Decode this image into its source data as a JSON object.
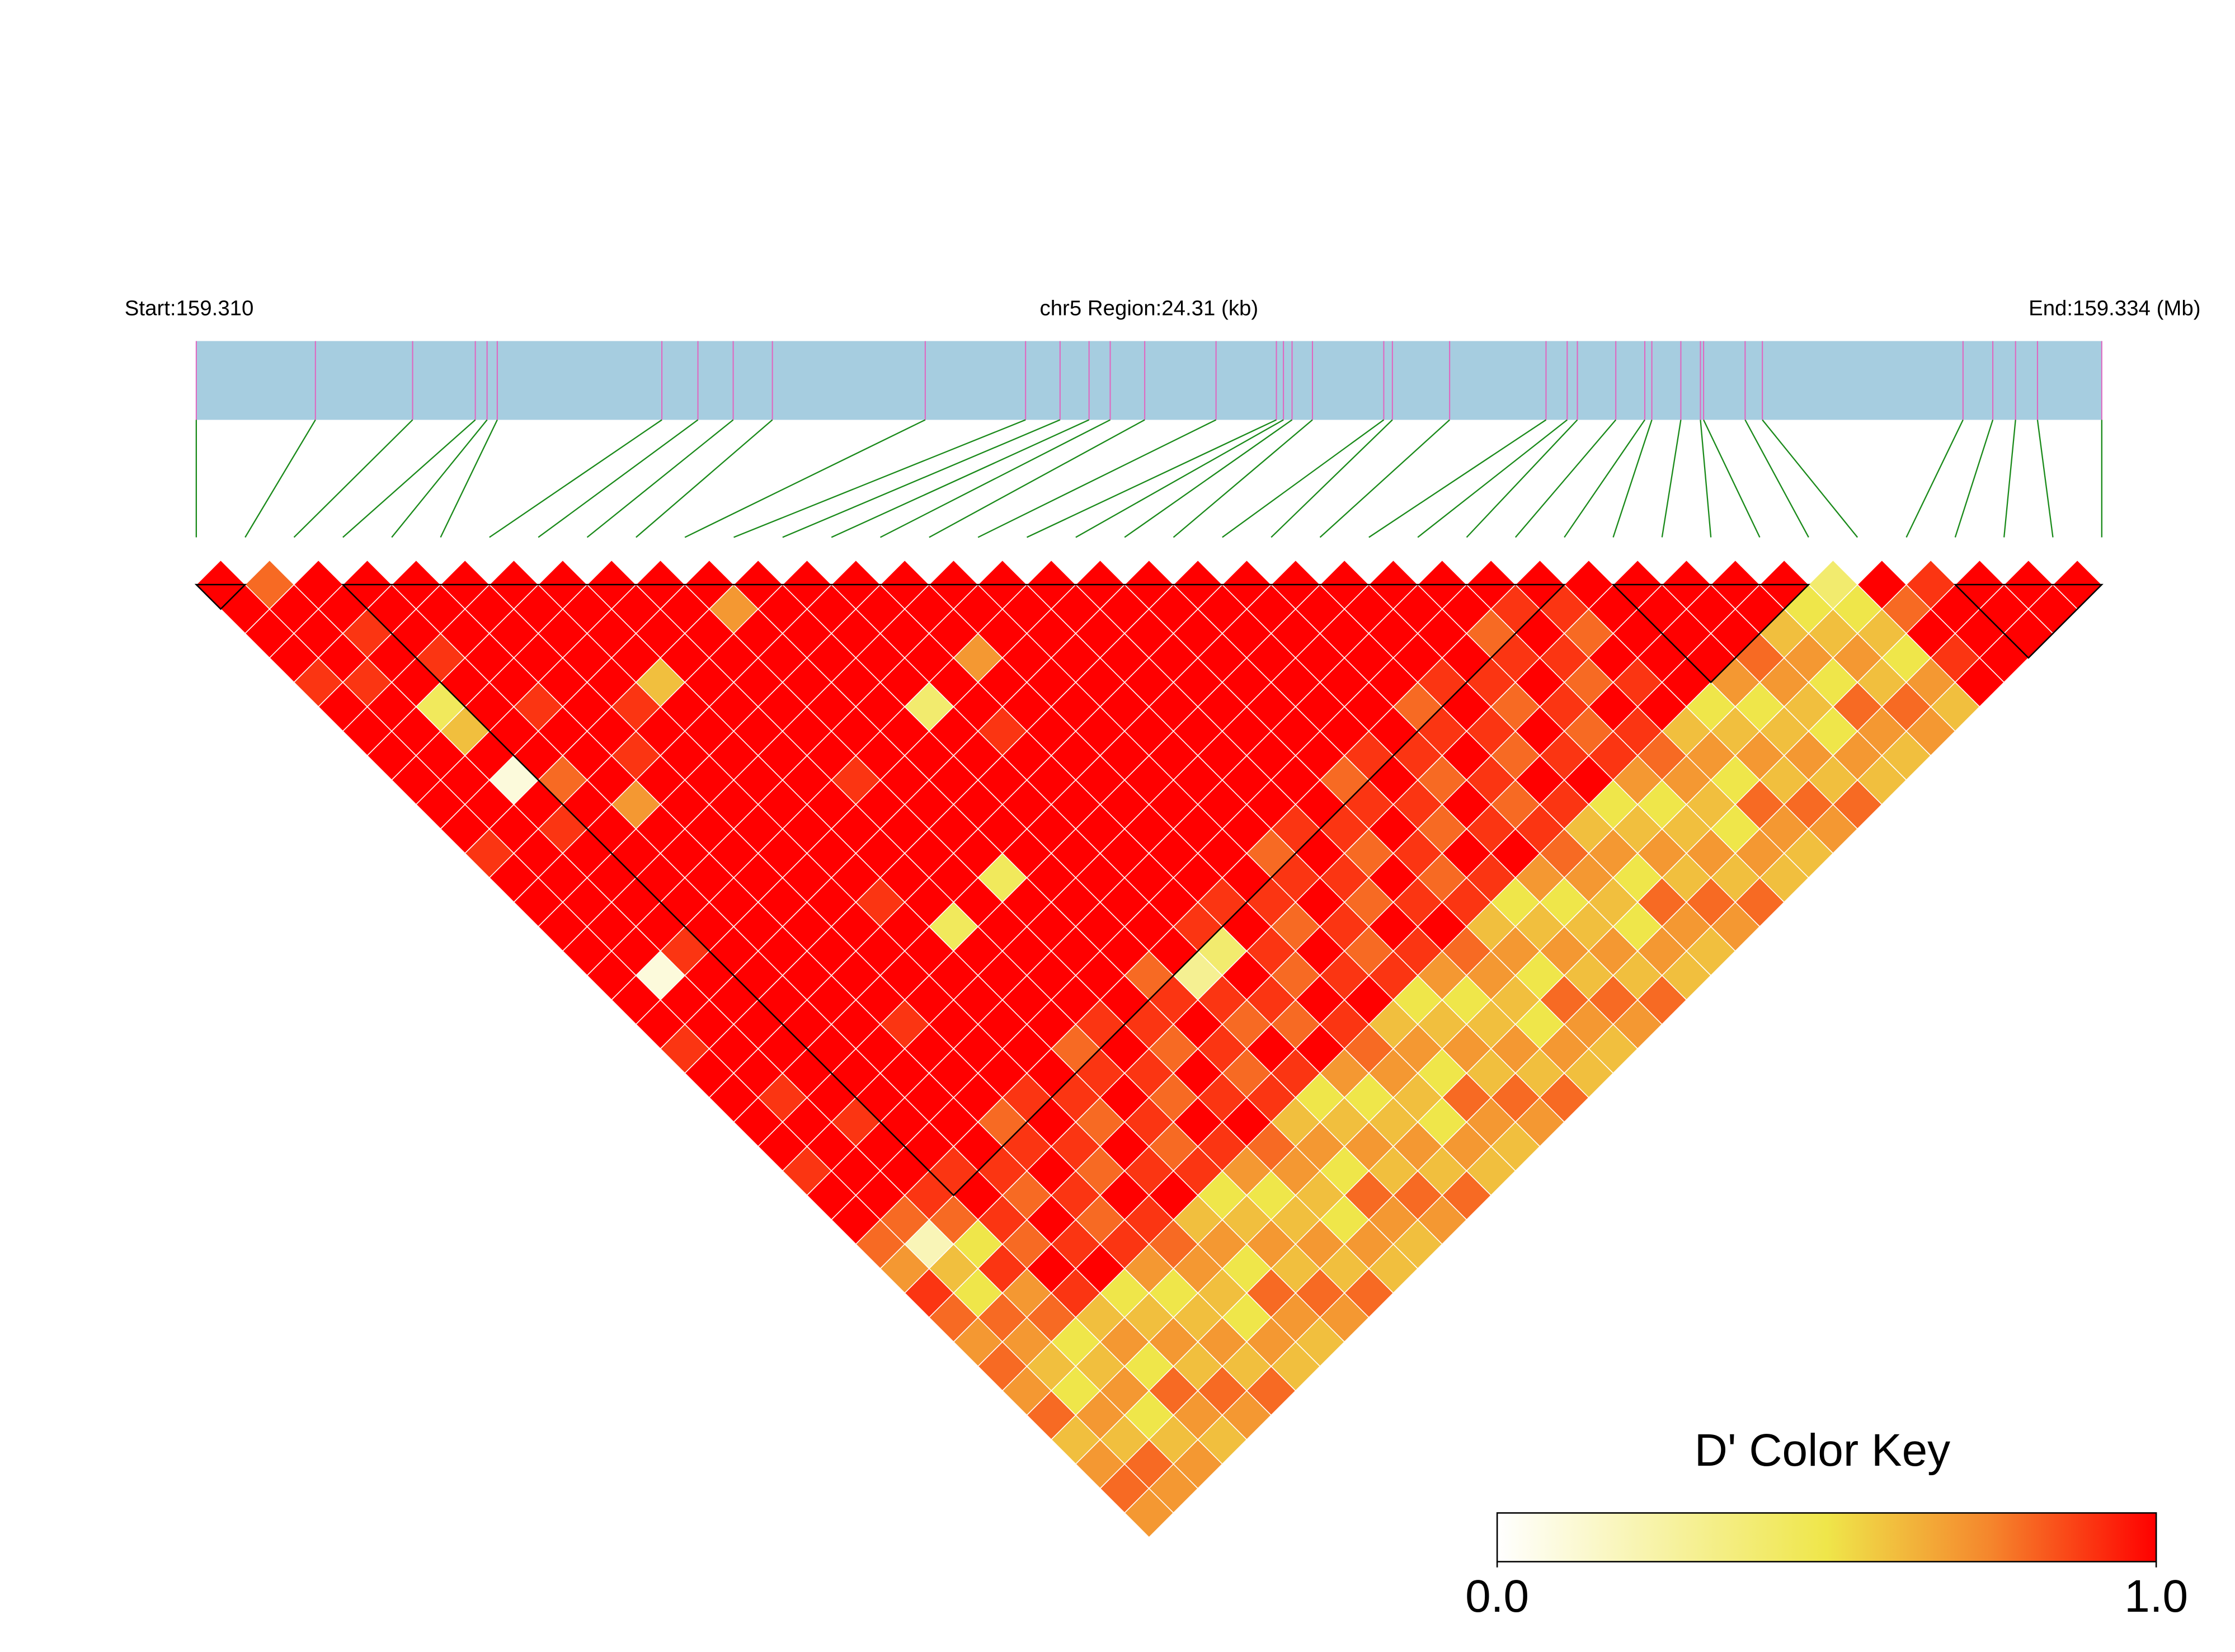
{
  "chart_data": {
    "type": "ld-heatmap",
    "start_label": "Start:159.310",
    "region_label": "chr5 Region:24.31 (kb)",
    "end_label": "End:159.334 (Mb)",
    "key_title": "D' Color Key",
    "key_ticks": [
      {
        "value": 0,
        "label": "0.0"
      },
      {
        "value": 1,
        "label": "1.0"
      }
    ],
    "color_stops": [
      {
        "value": 0,
        "color": "#ffffff"
      },
      {
        "value": 0.5,
        "color": "#efe64a"
      },
      {
        "value": 0.75,
        "color": "#f5852c"
      },
      {
        "value": 1,
        "color": "#ff0000"
      }
    ],
    "bar_color": "#a6cde0",
    "tick_color": "#e066c0",
    "connector_color": "#1a8a1a",
    "block_color": "#000000",
    "cell_border": "#ffffff",
    "xlim": [
      0,
      24.31
    ],
    "positions": [
      0,
      1.52,
      2.76,
      3.56,
      3.71,
      3.84,
      5.94,
      6.4,
      6.85,
      7.35,
      9.3,
      10.58,
      11.02,
      11.39,
      11.66,
      12.1,
      13.01,
      13.78,
      13.87,
      13.98,
      14.24,
      15.15,
      15.26,
      15.99,
      17.22,
      17.49,
      17.62,
      18.11,
      18.48,
      18.57,
      18.94,
      19.19,
      19.23,
      19.76,
      19.98,
      22.54,
      22.92,
      23.21,
      23.49,
      24.31
    ],
    "blocks": [
      [
        0,
        1
      ],
      [
        3,
        28
      ],
      [
        29,
        33
      ],
      [
        36,
        39
      ]
    ],
    "values": [
      [
        1,
        1,
        1,
        1,
        0.9,
        1,
        1,
        1,
        1,
        1,
        1,
        0.9,
        1,
        1,
        1,
        1,
        1,
        1,
        1,
        0.9,
        1,
        1,
        1,
        1,
        0.9,
        1,
        1,
        0.8,
        0.7,
        0.9,
        0.8,
        0.7,
        0.8,
        0.7,
        0.8,
        0.6,
        0.7,
        0.8,
        0.7
      ],
      [
        0.8,
        1,
        1,
        1,
        0.9,
        1,
        1,
        1,
        1,
        1,
        1,
        1,
        1,
        1,
        1,
        1,
        0.1,
        1,
        1,
        1,
        1,
        0.9,
        1,
        1,
        1,
        1,
        0.8,
        0.2,
        0.6,
        0.5,
        0.8,
        0.7,
        0.6,
        0.5,
        0.7,
        0.6,
        0.8,
        0.7
      ],
      [
        1,
        1,
        0.9,
        1,
        1,
        0.45,
        0.6,
        1,
        0.1,
        1,
        0.9,
        1,
        1,
        1,
        1,
        0.9,
        1,
        1,
        1,
        1,
        1,
        1,
        0.9,
        1,
        1,
        0.9,
        0.8,
        0.5,
        0.9,
        0.7,
        0.8,
        0.5,
        0.6,
        0.7,
        0.5,
        0.6,
        0.7
      ],
      [
        1,
        1,
        1,
        0.9,
        1,
        1,
        1,
        1,
        0.8,
        1,
        1,
        1,
        1,
        1,
        1,
        1,
        1,
        1,
        1,
        1,
        1,
        1,
        1,
        1,
        0.9,
        1,
        0.9,
        0.8,
        1,
        0.9,
        0.6,
        0.7,
        0.5,
        0.8,
        0.7,
        0.6
      ],
      [
        1,
        1,
        1,
        1,
        1,
        0.9,
        1,
        1,
        1,
        0.7,
        1,
        1,
        1,
        1,
        1,
        1,
        1,
        1,
        1,
        1,
        1,
        1,
        1,
        1,
        0.9,
        0.8,
        1,
        0.9,
        1,
        0.5,
        0.6,
        0.7,
        0.6,
        0.8,
        0.7
      ],
      [
        1,
        1,
        1,
        1,
        1,
        1,
        1,
        0.9,
        1,
        1,
        1,
        1,
        1,
        1,
        1,
        1,
        1,
        1,
        0.9,
        1,
        1,
        1,
        0.8,
        0.9,
        1,
        0.9,
        0.8,
        0.9,
        0.7,
        0.5,
        0.6,
        0.7,
        0.6,
        0.8
      ],
      [
        1,
        1,
        1,
        1,
        1,
        0.9,
        1,
        1,
        1,
        1,
        1,
        1,
        1,
        1,
        1,
        1,
        1,
        1,
        1,
        1,
        1,
        0.9,
        1,
        0.9,
        0.8,
        1,
        0.9,
        0.8,
        0.7,
        0.6,
        0.5,
        0.7,
        0.6
      ],
      [
        1,
        1,
        1,
        1,
        0.6,
        1,
        1,
        1,
        1,
        1,
        1,
        1,
        1,
        0.9,
        1,
        1,
        1,
        1,
        1,
        1,
        1,
        0.9,
        0.8,
        1,
        0.9,
        1,
        0.6,
        0.7,
        0.5,
        0.8,
        0.7,
        0.6
      ],
      [
        1,
        1,
        1,
        1,
        1,
        1,
        1,
        1,
        1,
        1,
        1,
        1,
        1,
        1,
        0.45,
        1,
        1,
        1,
        1,
        0.8,
        0.9,
        1,
        0.9,
        0.8,
        0.9,
        0.5,
        0.6,
        0.7,
        0.6,
        0.8,
        0.7
      ],
      [
        1,
        1,
        1,
        1,
        1,
        1,
        1,
        1,
        0.9,
        1,
        1,
        1,
        1,
        1,
        1,
        1,
        1,
        1,
        0.9,
        1,
        0.9,
        0.8,
        1,
        0.9,
        0.7,
        0.5,
        0.6,
        0.7,
        0.6,
        0.8
      ],
      [
        1,
        0.7,
        1,
        1,
        1,
        1,
        1,
        1,
        1,
        1,
        1,
        1,
        0.45,
        1,
        1,
        1,
        1,
        1,
        0.9,
        0.8,
        1,
        0.9,
        1,
        0.8,
        0.7,
        0.6,
        0.5,
        0.7,
        0.6
      ],
      [
        1,
        1,
        1,
        1,
        1,
        1,
        1,
        1,
        1,
        1,
        1,
        1,
        1,
        1,
        1,
        1,
        0.8,
        0.9,
        1,
        0.9,
        0.8,
        0.9,
        0.6,
        0.7,
        0.5,
        0.8,
        0.7,
        0.6
      ],
      [
        1,
        1,
        1,
        1,
        1,
        0.4,
        1,
        1,
        1,
        1,
        1,
        1,
        1,
        1,
        1,
        1,
        0.3,
        0.9,
        0.8,
        1,
        0.9,
        0.5,
        0.6,
        0.7,
        0.6,
        0.8,
        0.7
      ],
      [
        1,
        1,
        1,
        1,
        1,
        1,
        0.9,
        1,
        1,
        1,
        1,
        1,
        1,
        1,
        0.9,
        0.4,
        1,
        0.9,
        0.8,
        1,
        0.7,
        0.5,
        0.6,
        0.7,
        0.6,
        0.8
      ],
      [
        1,
        1,
        1,
        0.7,
        1,
        1,
        1,
        1,
        1,
        1,
        1,
        1,
        1,
        0.9,
        1,
        0.9,
        0.8,
        1,
        0.9,
        0.8,
        0.7,
        0.6,
        0.5,
        0.7,
        0.6
      ],
      [
        1,
        1,
        1,
        1,
        1,
        1,
        1,
        1,
        1,
        1,
        1,
        1,
        1,
        0.9,
        0.8,
        1,
        0.9,
        1,
        0.6,
        0.7,
        0.5,
        0.8,
        0.7,
        0.6
      ],
      [
        1,
        1,
        1,
        1,
        1,
        1,
        1,
        1,
        1,
        1,
        1,
        0.8,
        0.9,
        1,
        0.9,
        0.8,
        0.9,
        0.5,
        0.6,
        0.7,
        0.6,
        0.8,
        0.7
      ],
      [
        1,
        1,
        1,
        1,
        1,
        1,
        1,
        1,
        1,
        1,
        0.9,
        1,
        0.9,
        0.8,
        1,
        0.9,
        0.7,
        0.5,
        0.6,
        0.7,
        0.6,
        0.8
      ],
      [
        1,
        1,
        1,
        1,
        1,
        1,
        1,
        1,
        1,
        1,
        0.9,
        0.8,
        1,
        0.9,
        1,
        0.8,
        0.7,
        0.6,
        0.5,
        0.7,
        0.6
      ],
      [
        1,
        1,
        1,
        1,
        1,
        1,
        1,
        1,
        0.8,
        0.9,
        1,
        0.9,
        0.8,
        0.9,
        0.6,
        0.7,
        0.5,
        0.8,
        0.7,
        0.6
      ],
      [
        1,
        1,
        1,
        1,
        1,
        1,
        1,
        0.9,
        1,
        0.9,
        0.8,
        1,
        0.9,
        0.5,
        0.6,
        0.7,
        0.6,
        0.8,
        0.7
      ],
      [
        1,
        1,
        1,
        1,
        1,
        1,
        1,
        0.9,
        0.8,
        1,
        0.9,
        1,
        0.7,
        0.5,
        0.6,
        0.7,
        0.6,
        0.8
      ],
      [
        1,
        1,
        1,
        1,
        1,
        0.8,
        0.9,
        1,
        0.9,
        0.8,
        0.9,
        0.8,
        0.7,
        0.6,
        0.5,
        0.7,
        0.6
      ],
      [
        1,
        1,
        1,
        1,
        0.9,
        1,
        0.9,
        0.8,
        1,
        0.9,
        0.6,
        0.7,
        0.5,
        0.8,
        0.7,
        0.6
      ],
      [
        1,
        1,
        1,
        1,
        0.9,
        0.8,
        1,
        0.9,
        1,
        0.5,
        0.6,
        0.7,
        0.6,
        0.8,
        0.7
      ],
      [
        1,
        1,
        0.8,
        0.9,
        1,
        0.9,
        0.8,
        0.9,
        0.7,
        0.5,
        0.6,
        0.7,
        0.6,
        0.8
      ],
      [
        1,
        0.9,
        1,
        0.9,
        0.8,
        1,
        0.9,
        0.8,
        0.7,
        0.6,
        0.5,
        0.7,
        0.6
      ],
      [
        1,
        0.9,
        0.8,
        1,
        0.9,
        1,
        0.6,
        0.7,
        0.5,
        0.8,
        0.7,
        0.6
      ],
      [
        1,
        1,
        1,
        1,
        1,
        0.5,
        0.6,
        0.7,
        0.6,
        0.8,
        0.7
      ],
      [
        1,
        1,
        1,
        1,
        0.7,
        0.5,
        0.6,
        0.7,
        0.6,
        0.8
      ],
      [
        1,
        1,
        1,
        0.8,
        0.7,
        0.6,
        0.5,
        0.7,
        0.6
      ],
      [
        1,
        1,
        0.6,
        0.7,
        0.5,
        0.8,
        0.7,
        0.6
      ],
      [
        1,
        0.5,
        0.6,
        0.7,
        0.6,
        0.8,
        0.7
      ],
      [
        0.4,
        0.5,
        0.6,
        0.5,
        0.7,
        0.6
      ],
      [
        1,
        0.8,
        1,
        0.9,
        1
      ],
      [
        0.9,
        1,
        1,
        1
      ],
      [
        1,
        1,
        1
      ],
      [
        1,
        1
      ],
      [
        1
      ]
    ]
  }
}
